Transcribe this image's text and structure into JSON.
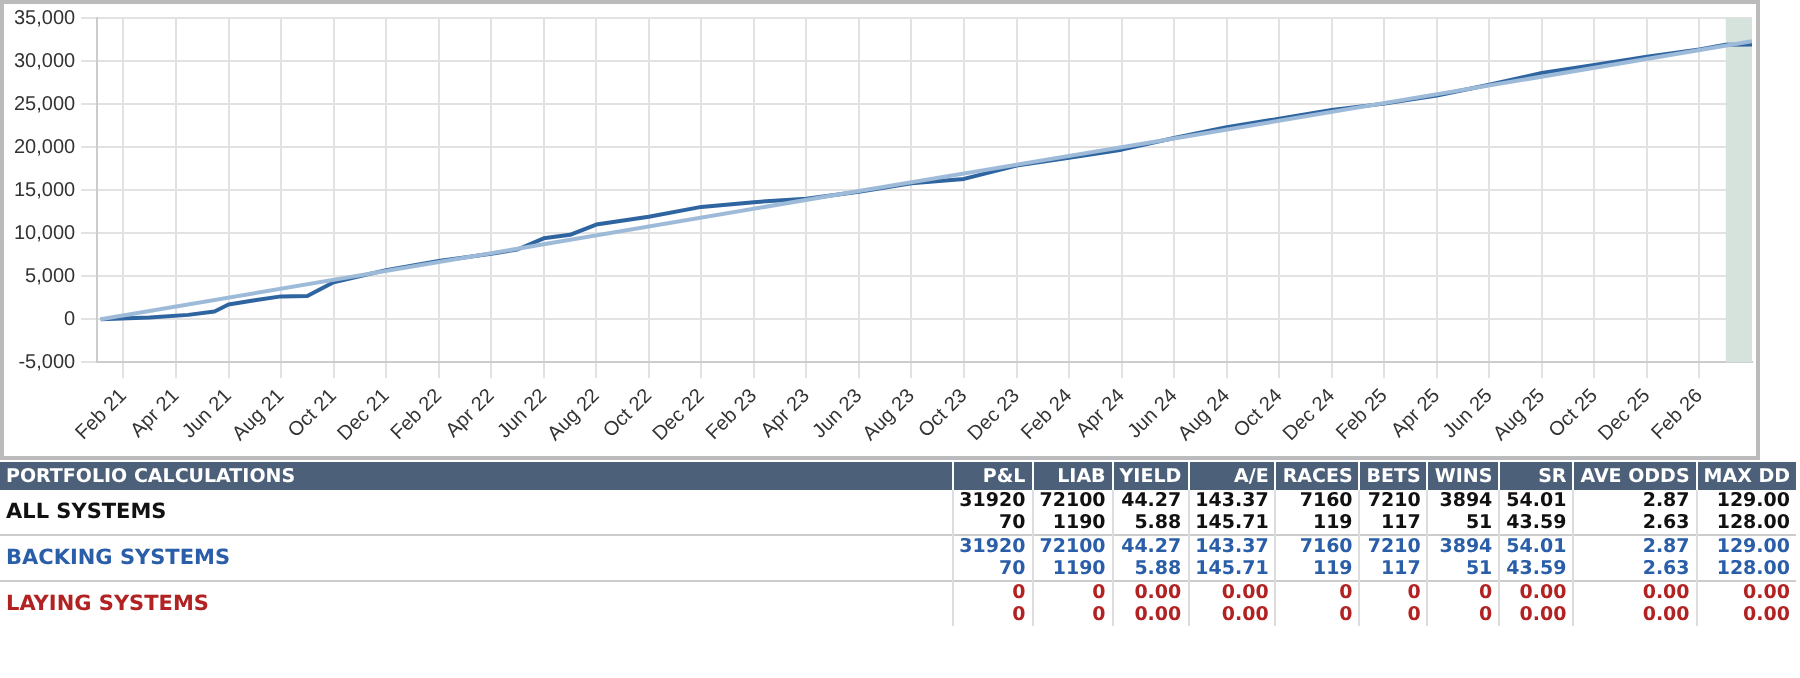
{
  "chart_data": [
    {
      "type": "line",
      "xlim": [
        "2021-01-01",
        "2026-04-01"
      ],
      "xticks": [
        {
          "value": "2021-02",
          "label": "Feb 21"
        },
        {
          "value": "2021-04",
          "label": "Apr 21"
        },
        {
          "value": "2021-06",
          "label": "Jun 21"
        },
        {
          "value": "2021-08",
          "label": "Aug 21"
        },
        {
          "value": "2021-10",
          "label": "Oct 21"
        },
        {
          "value": "2021-12",
          "label": "Dec 21"
        },
        {
          "value": "2022-02",
          "label": "Feb 22"
        },
        {
          "value": "2022-04",
          "label": "Apr 22"
        },
        {
          "value": "2022-06",
          "label": "Jun 22"
        },
        {
          "value": "2022-08",
          "label": "Aug 22"
        },
        {
          "value": "2022-10",
          "label": "Oct 22"
        },
        {
          "value": "2022-12",
          "label": "Dec 22"
        },
        {
          "value": "2023-02",
          "label": "Feb 23"
        },
        {
          "value": "2023-04",
          "label": "Apr 23"
        },
        {
          "value": "2023-06",
          "label": "Jun 23"
        },
        {
          "value": "2023-08",
          "label": "Aug 23"
        },
        {
          "value": "2023-10",
          "label": "Oct 23"
        },
        {
          "value": "2023-12",
          "label": "Dec 23"
        },
        {
          "value": "2024-02",
          "label": "Feb 24"
        },
        {
          "value": "2024-04",
          "label": "Apr 24"
        },
        {
          "value": "2024-06",
          "label": "Jun 24"
        },
        {
          "value": "2024-08",
          "label": "Aug 24"
        },
        {
          "value": "2024-10",
          "label": "Oct 24"
        },
        {
          "value": "2024-12",
          "label": "Dec 24"
        },
        {
          "value": "2025-02",
          "label": "Feb 25"
        },
        {
          "value": "2025-04",
          "label": "Apr 25"
        },
        {
          "value": "2025-06",
          "label": "Jun 25"
        },
        {
          "value": "2025-08",
          "label": "Aug 25"
        },
        {
          "value": "2025-10",
          "label": "Oct 25"
        },
        {
          "value": "2025-12",
          "label": "Dec 25"
        },
        {
          "value": "2026-02",
          "label": "Feb 26"
        }
      ],
      "ylim": [
        -5000,
        35000
      ],
      "yticks": [
        {
          "value": -5000,
          "label": "-5,000"
        },
        {
          "value": 0,
          "label": "0"
        },
        {
          "value": 5000,
          "label": "5,000"
        },
        {
          "value": 10000,
          "label": "10,000"
        },
        {
          "value": 15000,
          "label": "15,000"
        },
        {
          "value": 20000,
          "label": "20,000"
        },
        {
          "value": 25000,
          "label": "25,000"
        },
        {
          "value": 30000,
          "label": "30,000"
        },
        {
          "value": 35000,
          "label": "35,000"
        }
      ],
      "grid": true,
      "legend": false,
      "marker": "none",
      "line_style": "solid",
      "bands": [
        {
          "axis": "x",
          "from": "2026-03-01",
          "to": "2026-04-01",
          "color": "#d5e3dc"
        }
      ],
      "series": [
        {
          "color": "#9dbbd8",
          "x": [
            "2021-01-05",
            "2022-06-01",
            "2023-06-01",
            "2024-06-01",
            "2026-04-01"
          ],
          "values": [
            0,
            8700,
            14900,
            21000,
            32300
          ]
        },
        {
          "color": "#2e64a0",
          "x": [
            "2021-01-05",
            "2021-03-01",
            "2021-04-15",
            "2021-05-15",
            "2021-06-01",
            "2021-07-01",
            "2021-08-01",
            "2021-09-01",
            "2021-10-01",
            "2021-12-01",
            "2022-02-01",
            "2022-04-01",
            "2022-05-01",
            "2022-06-01",
            "2022-07-01",
            "2022-08-01",
            "2022-10-01",
            "2022-12-01",
            "2023-02-01",
            "2023-04-01",
            "2023-06-01",
            "2023-08-01",
            "2023-10-01",
            "2023-12-01",
            "2024-02-01",
            "2024-04-01",
            "2024-06-01",
            "2024-08-01",
            "2024-10-01",
            "2024-12-01",
            "2025-02-01",
            "2025-04-01",
            "2025-06-01",
            "2025-08-01",
            "2025-10-01",
            "2025-12-01",
            "2026-02-01",
            "2026-03-01",
            "2026-04-01"
          ],
          "values": [
            0,
            200,
            500,
            900,
            1700,
            2200,
            2650,
            2700,
            4300,
            5700,
            6750,
            7600,
            8100,
            9400,
            9800,
            11000,
            11900,
            13050,
            13600,
            14000,
            14800,
            15800,
            16300,
            17850,
            18750,
            19700,
            21050,
            22300,
            23300,
            24300,
            25050,
            26000,
            27250,
            28600,
            29550,
            30500,
            31350,
            31900,
            31920
          ]
        }
      ]
    },
    {
      "type": "other",
      "annotations": [
        "PORTFOLIO CALCULATIONS",
        "P&L",
        "LIAB",
        "YIELD",
        "A/E",
        "RACES",
        "BETS",
        "WINS",
        "SR",
        "AVE ODDS",
        "MAX DD",
        "ALL SYSTEMS",
        "31920",
        "72100",
        "44.27",
        "143.37",
        "7160",
        "7210",
        "3894",
        "54.01",
        "2.87",
        "129.00",
        "70",
        "1190",
        "5.88",
        "145.71",
        "119",
        "117",
        "51",
        "43.59",
        "2.63",
        "128.00",
        "BACKING SYSTEMS",
        "31920",
        "72100",
        "44.27",
        "143.37",
        "7160",
        "7210",
        "3894",
        "54.01",
        "2.87",
        "129.00",
        "70",
        "1190",
        "5.88",
        "145.71",
        "119",
        "117",
        "51",
        "43.59",
        "2.63",
        "128.00",
        "LAYING SYSTEMS",
        "0",
        "0",
        "0.00",
        "0.00",
        "0",
        "0",
        "0",
        "0.00",
        "0.00",
        "0.00",
        "0",
        "0",
        "0.00",
        "0.00",
        "0",
        "0",
        "0",
        "0.00",
        "0.00",
        "0.00"
      ]
    }
  ]
}
